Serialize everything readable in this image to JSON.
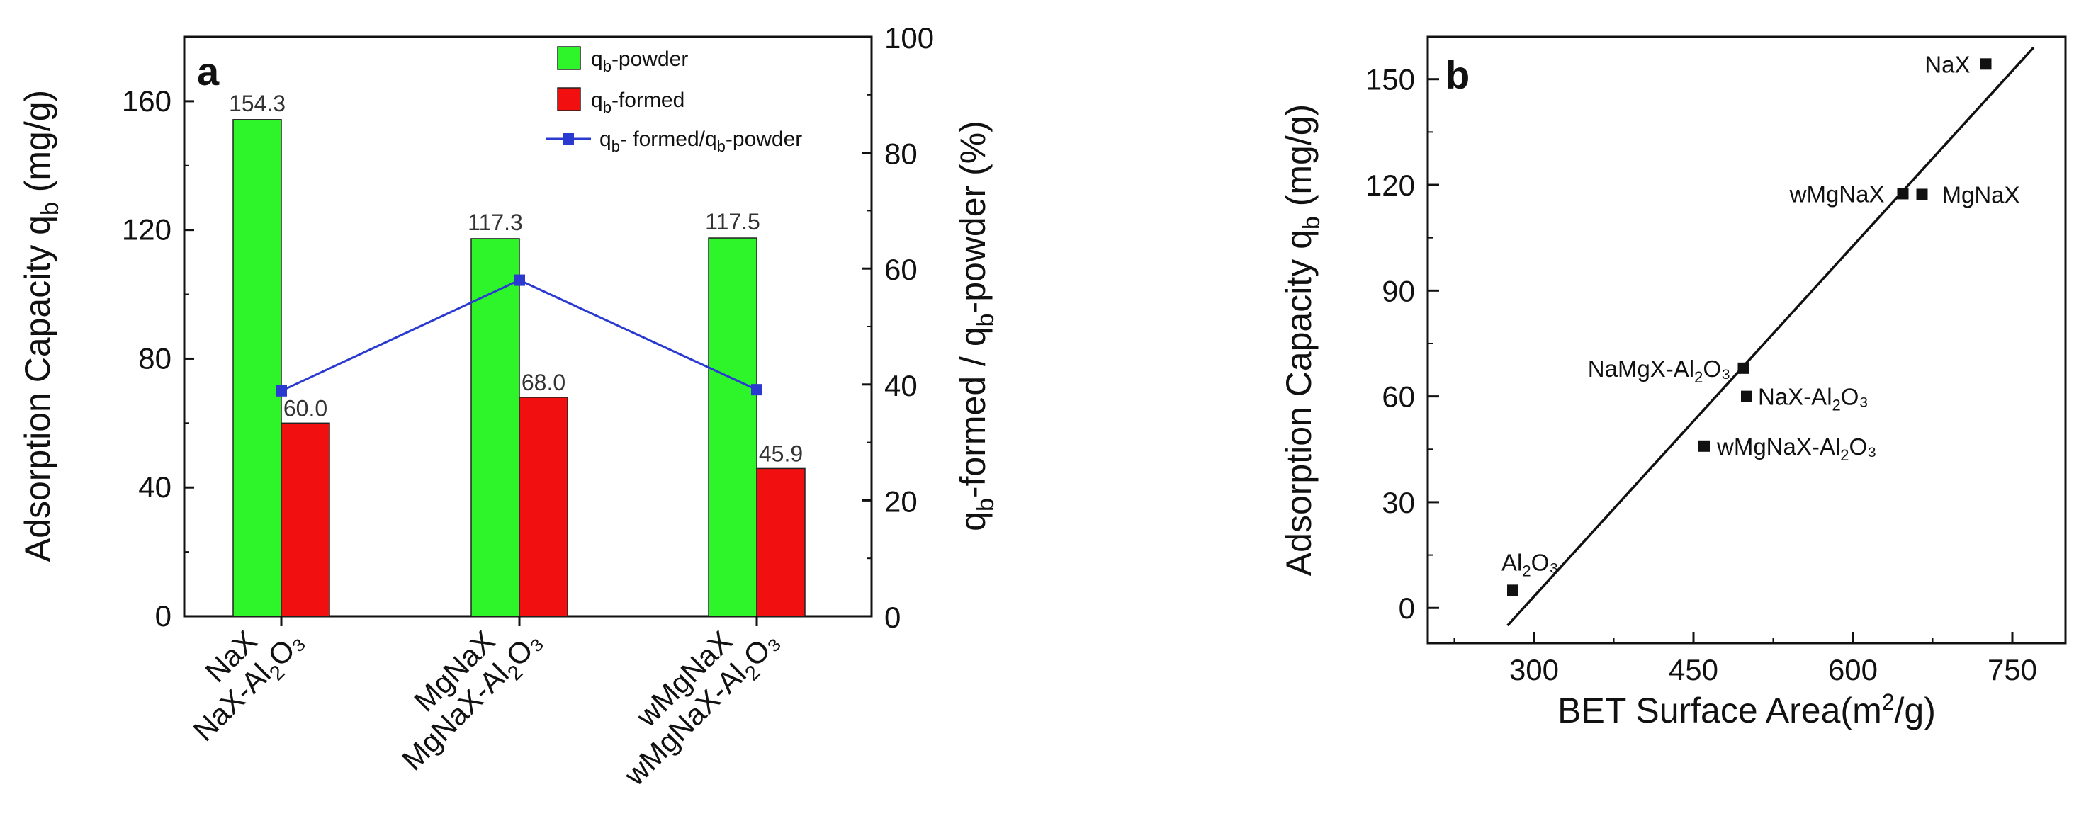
{
  "chart_data": [
    {
      "panel": "a",
      "type": "bar",
      "ylabel_left": "Adsorption Capacity q_b (mg/g)",
      "ylabel_right": "q_b-formed / q_b-powder (%)",
      "ylim_left": [
        0,
        180
      ],
      "yticks_left": [
        "0",
        "40",
        "80",
        "120",
        "160"
      ],
      "ylim_right": [
        0,
        100
      ],
      "yticks_right": [
        "0",
        "20",
        "40",
        "60",
        "80",
        "100"
      ],
      "categories_powder": [
        "NaX",
        "MgNaX",
        "wMgNaX"
      ],
      "categories_formed": [
        "NaX-Al₂O₃",
        "MgNaX-Al₂O₃",
        "wMgNaX-Al₂O₃"
      ],
      "legend": [
        "q_b-powder",
        "q_b-formed",
        "q_b-formed/q_b-powder"
      ],
      "series": [
        {
          "name": "q_b-powder",
          "values": [
            154.3,
            117.3,
            117.5
          ],
          "labels": [
            "154.3",
            "117.3",
            "117.5"
          ],
          "color": "#2ef52a"
        },
        {
          "name": "q_b-formed",
          "values": [
            60.0,
            68.0,
            45.9
          ],
          "labels": [
            "60.0",
            "68.0",
            "45.9"
          ],
          "color": "#f10f0f"
        },
        {
          "name": "q_b-formed/q_b-powder",
          "values": [
            38.9,
            58.0,
            39.1
          ],
          "color": "#2a3ad0",
          "axis": "right"
        }
      ]
    },
    {
      "panel": "b",
      "type": "scatter",
      "xlabel": "BET Surface Area(m²/g)",
      "ylabel": "Adsorption Capacity q_b (mg/g)",
      "xlim": [
        200,
        800
      ],
      "xticks": [
        "300",
        "450",
        "600",
        "750"
      ],
      "ylim": [
        -10,
        162
      ],
      "yticks": [
        "0",
        "30",
        "60",
        "90",
        "120",
        "150"
      ],
      "points": [
        {
          "label": "NaX",
          "x": 725,
          "y": 154.3
        },
        {
          "label": "MgNaX",
          "x": 665,
          "y": 117.3
        },
        {
          "label": "wMgNaX",
          "x": 647,
          "y": 117.5
        },
        {
          "label": "NaMgX-Al₂O₃",
          "x": 497,
          "y": 68.0
        },
        {
          "label": "NaX-Al₂O₃",
          "x": 500,
          "y": 60.0
        },
        {
          "label": "wMgNaX-Al₂O₃",
          "x": 460,
          "y": 45.9
        },
        {
          "label": "Al₂O₃",
          "x": 280,
          "y": 5.0
        }
      ],
      "fit_line": {
        "x": [
          275,
          770
        ],
        "y": [
          -5,
          159
        ]
      }
    }
  ]
}
